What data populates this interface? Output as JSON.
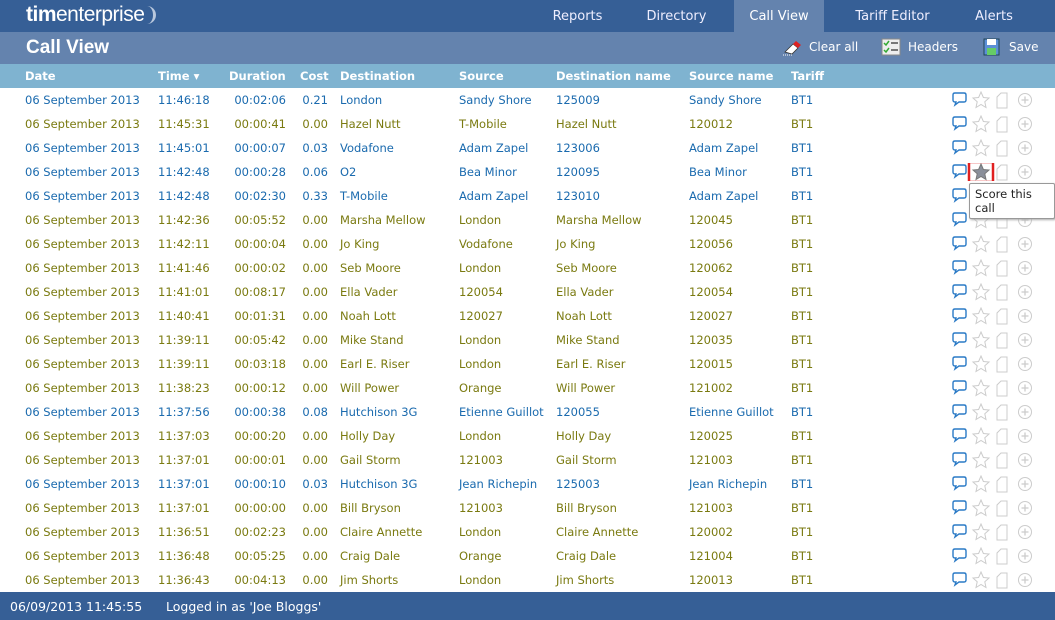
{
  "app": {
    "logo_bold": "tim",
    "logo_rest": "enterprise"
  },
  "nav": [
    {
      "label": "Reports"
    },
    {
      "label": "Directory"
    },
    {
      "label": "Call View",
      "active": true
    },
    {
      "label": "Tariff Editor"
    },
    {
      "label": "Alerts"
    }
  ],
  "page": {
    "title": "Call View"
  },
  "toolbar": {
    "clear_all": "Clear all",
    "headers": "Headers",
    "save": "Save"
  },
  "columns": [
    "Date",
    "Time ▾",
    "Duration",
    "Cost",
    "Destination",
    "Source",
    "Destination name",
    "Source name",
    "Tariff"
  ],
  "colors": {
    "linked": "#1a6aae",
    "unlinked": "#7a7a10",
    "header": "#365f96",
    "highlight": "#e02020"
  },
  "rows": [
    [
      "06 September 2013",
      "11:46:18",
      "00:02:06",
      "0.21",
      "London",
      "Sandy Shore",
      "125009",
      "Sandy Shore",
      "BT1"
    ],
    [
      "06 September 2013",
      "11:45:31",
      "00:00:41",
      "0.00",
      "Hazel Nutt",
      "T-Mobile",
      "Hazel Nutt",
      "120012",
      "BT1"
    ],
    [
      "06 September 2013",
      "11:45:01",
      "00:00:07",
      "0.03",
      "Vodafone",
      "Adam Zapel",
      "123006",
      "Adam Zapel",
      "BT1"
    ],
    [
      "06 September 2013",
      "11:42:48",
      "00:00:28",
      "0.06",
      "O2",
      "Bea Minor",
      "120095",
      "Bea Minor",
      "BT1"
    ],
    [
      "06 September 2013",
      "11:42:48",
      "00:02:30",
      "0.33",
      "T-Mobile",
      "Adam Zapel",
      "123010",
      "Adam Zapel",
      "BT1"
    ],
    [
      "06 September 2013",
      "11:42:36",
      "00:05:52",
      "0.00",
      "Marsha Mellow",
      "London",
      "Marsha Mellow",
      "120045",
      "BT1"
    ],
    [
      "06 September 2013",
      "11:42:11",
      "00:00:04",
      "0.00",
      "Jo King",
      "Vodafone",
      "Jo King",
      "120056",
      "BT1"
    ],
    [
      "06 September 2013",
      "11:41:46",
      "00:00:02",
      "0.00",
      "Seb Moore",
      "London",
      "Seb Moore",
      "120062",
      "BT1"
    ],
    [
      "06 September 2013",
      "11:41:01",
      "00:08:17",
      "0.00",
      "Ella Vader",
      "120054",
      "Ella Vader",
      "120054",
      "BT1"
    ],
    [
      "06 September 2013",
      "11:40:41",
      "00:01:31",
      "0.00",
      "Noah Lott",
      "120027",
      "Noah Lott",
      "120027",
      "BT1"
    ],
    [
      "06 September 2013",
      "11:39:11",
      "00:05:42",
      "0.00",
      "Mike Stand",
      "London",
      "Mike Stand",
      "120035",
      "BT1"
    ],
    [
      "06 September 2013",
      "11:39:11",
      "00:03:18",
      "0.00",
      "Earl E. Riser",
      "London",
      "Earl E. Riser",
      "120015",
      "BT1"
    ],
    [
      "06 September 2013",
      "11:38:23",
      "00:00:12",
      "0.00",
      "Will Power",
      "Orange",
      "Will Power",
      "121002",
      "BT1"
    ],
    [
      "06 September 2013",
      "11:37:56",
      "00:00:38",
      "0.08",
      "Hutchison 3G",
      "Etienne Guillot",
      "120055",
      "Etienne Guillot",
      "BT1"
    ],
    [
      "06 September 2013",
      "11:37:03",
      "00:00:20",
      "0.00",
      "Holly Day",
      "London",
      "Holly Day",
      "120025",
      "BT1"
    ],
    [
      "06 September 2013",
      "11:37:01",
      "00:00:01",
      "0.00",
      "Gail Storm",
      "121003",
      "Gail Storm",
      "121003",
      "BT1"
    ],
    [
      "06 September 2013",
      "11:37:01",
      "00:00:10",
      "0.03",
      "Hutchison 3G",
      "Jean Richepin",
      "125003",
      "Jean Richepin",
      "BT1"
    ],
    [
      "06 September 2013",
      "11:37:01",
      "00:00:00",
      "0.00",
      "Bill Bryson",
      "121003",
      "Bill Bryson",
      "121003",
      "BT1"
    ],
    [
      "06 September 2013",
      "11:36:51",
      "00:02:23",
      "0.00",
      "Claire Annette",
      "London",
      "Claire Annette",
      "120002",
      "BT1"
    ],
    [
      "06 September 2013",
      "11:36:48",
      "00:05:25",
      "0.00",
      "Craig Dale",
      "Orange",
      "Craig Dale",
      "121004",
      "BT1"
    ],
    [
      "06 September 2013",
      "11:36:43",
      "00:04:13",
      "0.00",
      "Jim Shorts",
      "London",
      "Jim Shorts",
      "120013",
      "BT1"
    ]
  ],
  "linked_rows": [
    0,
    2,
    3,
    4,
    13,
    16
  ],
  "scored_row": 3,
  "tooltip": "Score this call",
  "footer": {
    "datetime": "06/09/2013 11:45:55",
    "user": "Logged in as 'Joe Bloggs'"
  }
}
